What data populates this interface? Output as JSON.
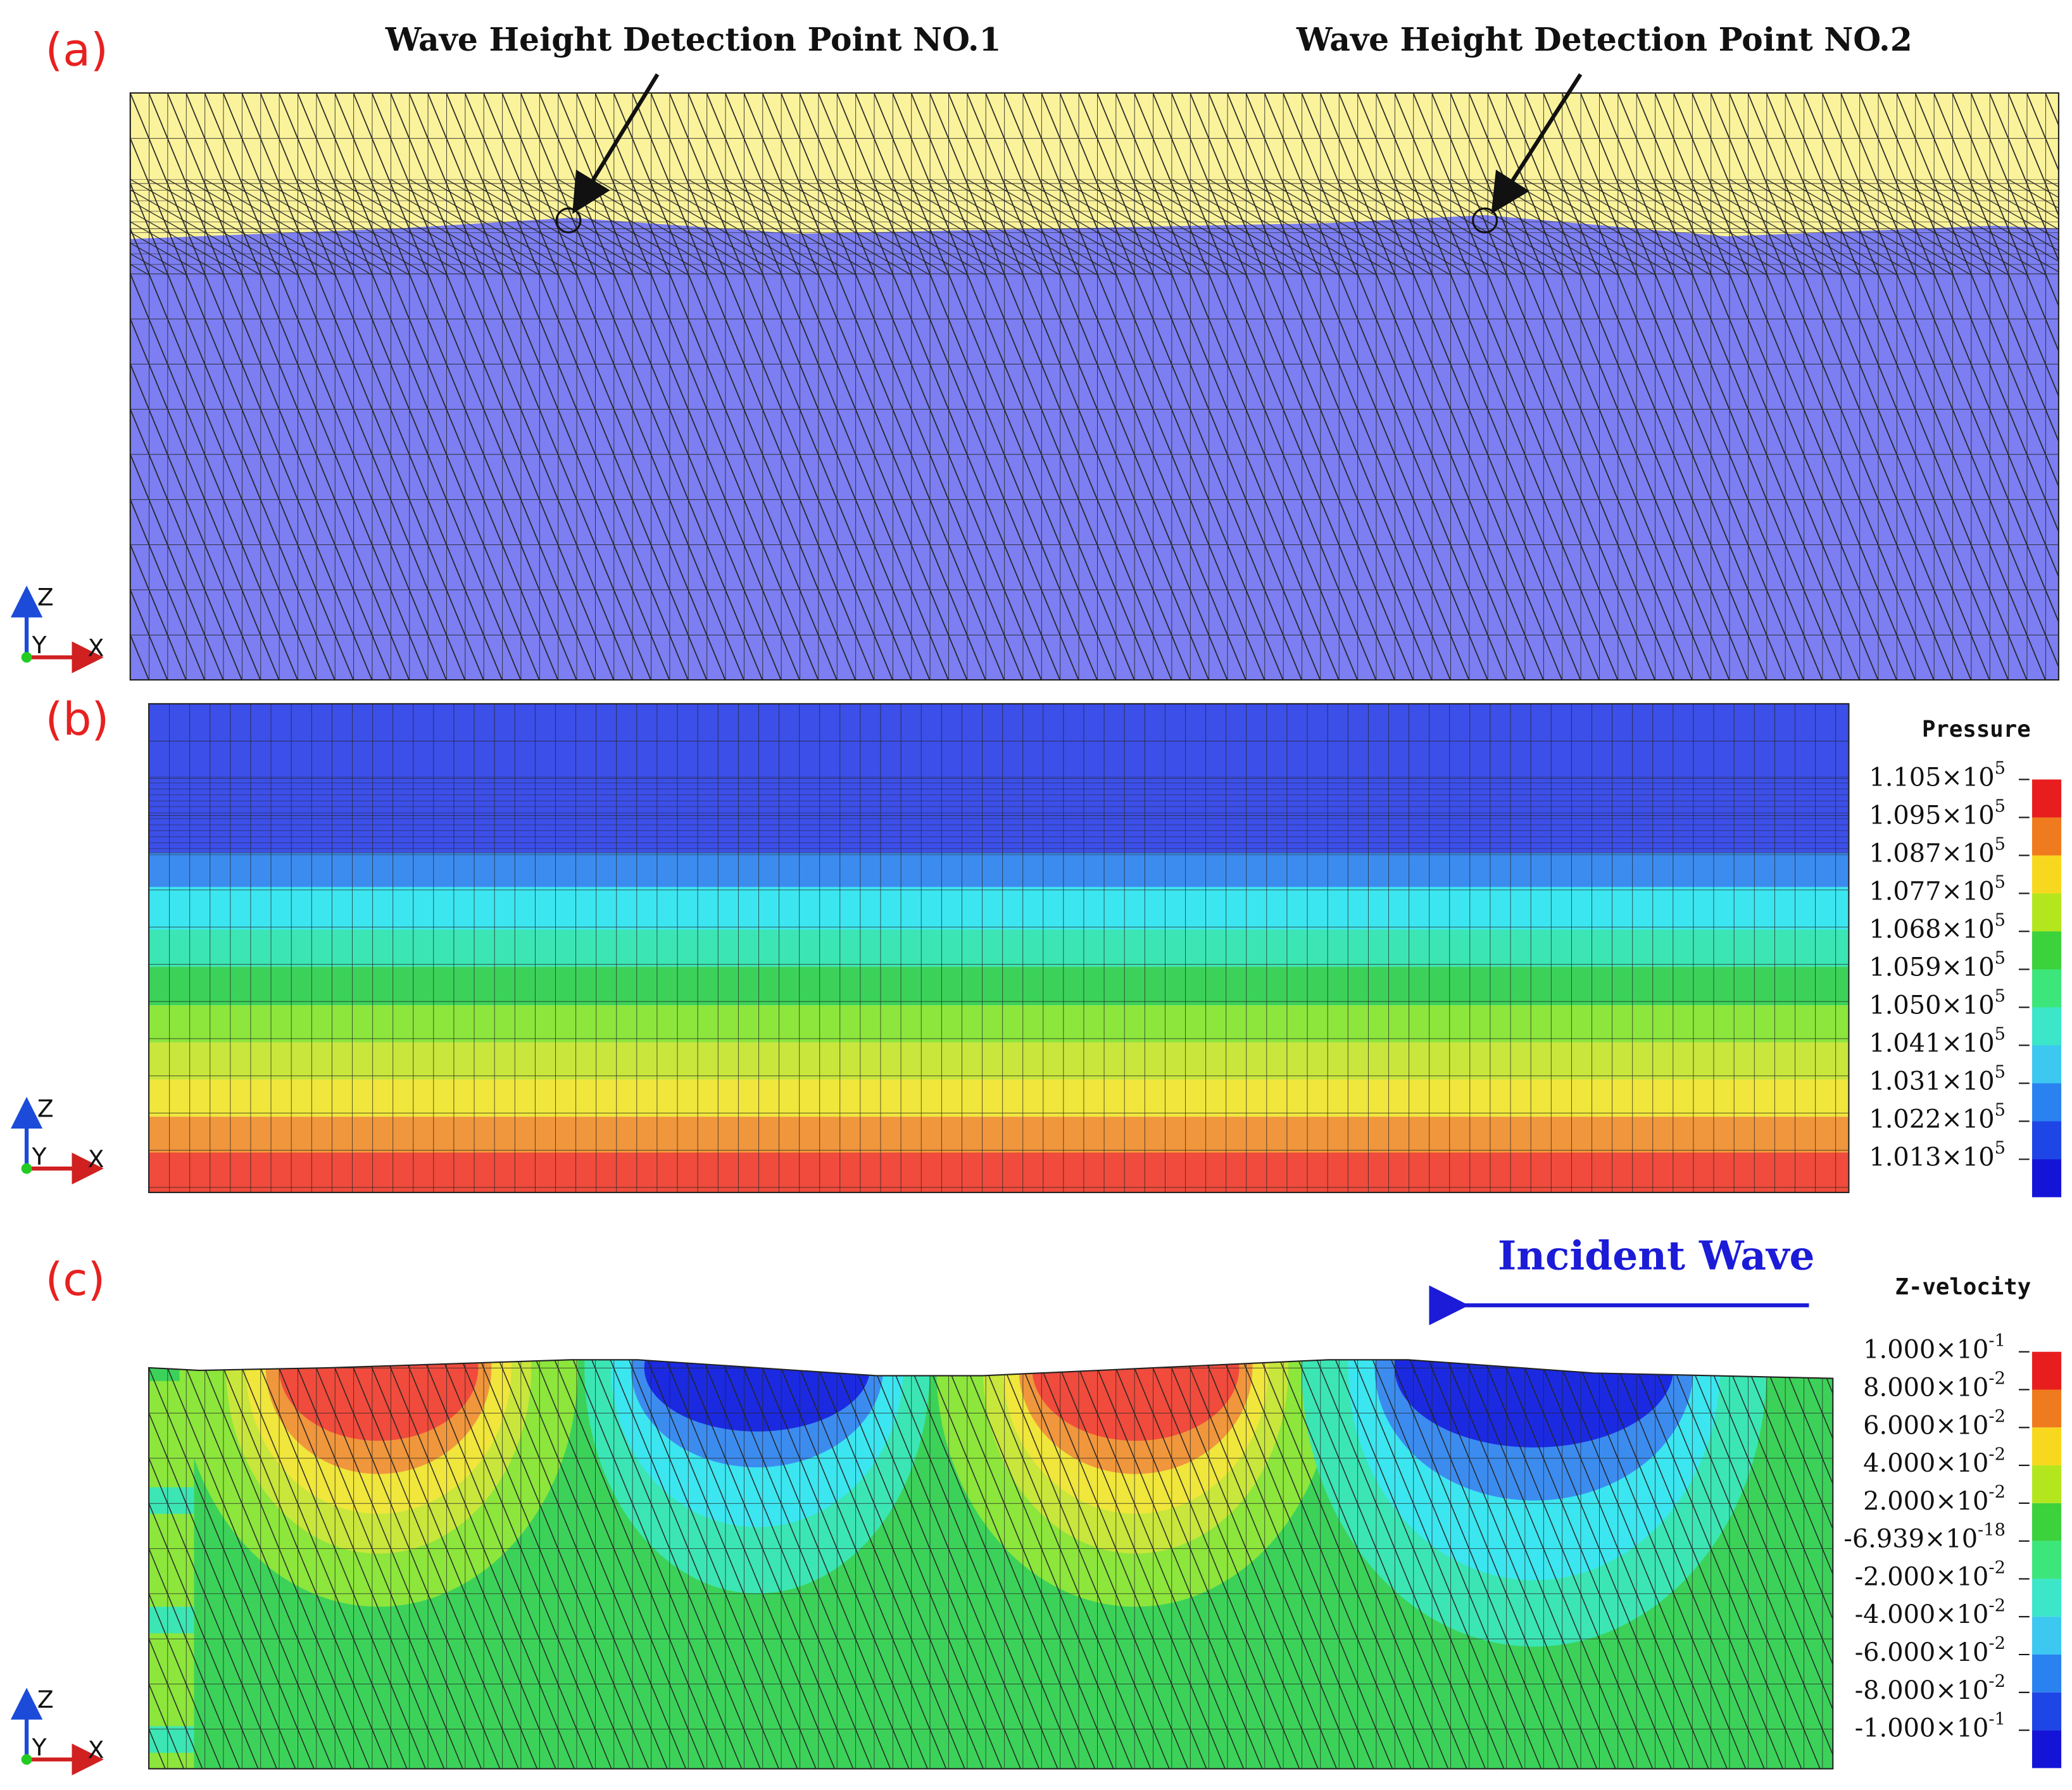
{
  "panels": [
    {
      "label": "(a)",
      "annotations": [
        "Wave Height Detection Point NO.1",
        "Wave Height Detection Point NO.2"
      ],
      "axes": {
        "z": "Z",
        "y": "Y",
        "x": "X"
      }
    },
    {
      "label": "(b)",
      "axes": {
        "z": "Z",
        "y": "Y",
        "x": "X"
      },
      "legend": {
        "title": "Pressure",
        "ticks": [
          {
            "base": "1.105×10",
            "exp": "5"
          },
          {
            "base": "1.095×10",
            "exp": "5"
          },
          {
            "base": "1.087×10",
            "exp": "5"
          },
          {
            "base": "1.077×10",
            "exp": "5"
          },
          {
            "base": "1.068×10",
            "exp": "5"
          },
          {
            "base": "1.059×10",
            "exp": "5"
          },
          {
            "base": "1.050×10",
            "exp": "5"
          },
          {
            "base": "1.041×10",
            "exp": "5"
          },
          {
            "base": "1.031×10",
            "exp": "5"
          },
          {
            "base": "1.022×10",
            "exp": "5"
          },
          {
            "base": "1.013×10",
            "exp": "5"
          }
        ]
      }
    },
    {
      "label": "(c)",
      "annotation": "Incident Wave",
      "axes": {
        "z": "Z",
        "y": "Y",
        "x": "X"
      },
      "legend": {
        "title": "Z-velocity",
        "ticks": [
          {
            "base": "1.000×10",
            "exp": "-1"
          },
          {
            "base": "8.000×10",
            "exp": "-2"
          },
          {
            "base": "6.000×10",
            "exp": "-2"
          },
          {
            "base": "4.000×10",
            "exp": "-2"
          },
          {
            "base": "2.000×10",
            "exp": "-2"
          },
          {
            "base": "-6.939×10",
            "exp": "-18"
          },
          {
            "base": "-2.000×10",
            "exp": "-2"
          },
          {
            "base": "-4.000×10",
            "exp": "-2"
          },
          {
            "base": "-6.000×10",
            "exp": "-2"
          },
          {
            "base": "-8.000×10",
            "exp": "-2"
          },
          {
            "base": "-1.000×10",
            "exp": "-1"
          }
        ]
      }
    }
  ]
}
